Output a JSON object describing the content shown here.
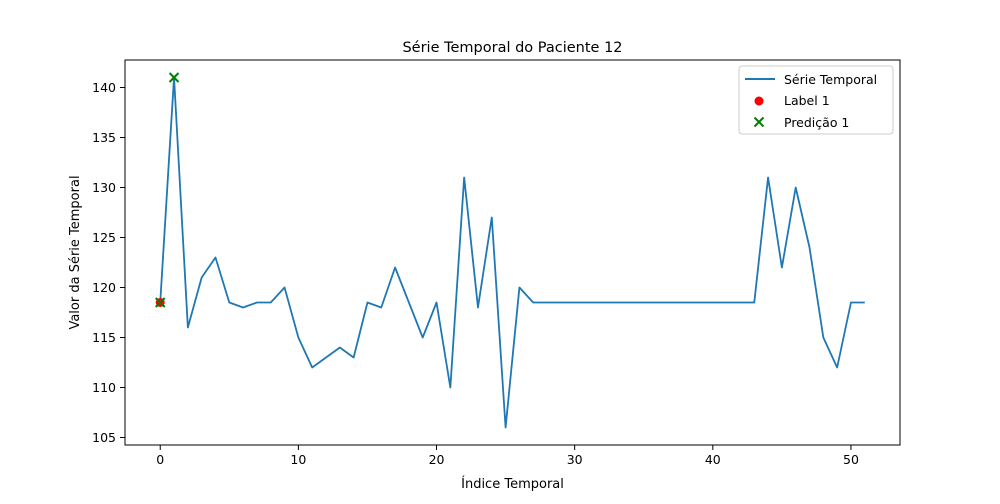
{
  "chart_data": {
    "type": "line",
    "title": "Série Temporal do Paciente 12",
    "xlabel": "Índice Temporal",
    "ylabel": "Valor da Série Temporal",
    "xlim": [
      -2.55,
      53.55
    ],
    "ylim": [
      104.25,
      142.75
    ],
    "xticks": [
      0,
      10,
      20,
      30,
      40,
      50
    ],
    "yticks": [
      105,
      110,
      115,
      120,
      125,
      130,
      135,
      140
    ],
    "grid": false,
    "legend_position": "top-right",
    "colors": {
      "line": "#1f77b4",
      "label": "#ff0000",
      "prediction": "#008000"
    },
    "series": [
      {
        "name": "Série Temporal",
        "kind": "line",
        "x": [
          0,
          1,
          2,
          3,
          4,
          5,
          6,
          7,
          8,
          9,
          10,
          11,
          12,
          13,
          14,
          15,
          16,
          17,
          18,
          19,
          20,
          21,
          22,
          23,
          24,
          25,
          26,
          27,
          28,
          29,
          30,
          31,
          32,
          33,
          34,
          35,
          36,
          37,
          38,
          39,
          40,
          41,
          42,
          43,
          44,
          45,
          46,
          47,
          48,
          49,
          50,
          51
        ],
        "values": [
          118.5,
          141,
          116,
          121,
          123,
          118.5,
          118,
          118.5,
          118.5,
          120,
          115,
          112,
          113,
          114,
          113,
          118.5,
          118,
          122,
          118.5,
          115,
          118.5,
          110,
          131,
          118,
          127,
          106,
          120,
          118.5,
          118.5,
          118.5,
          118.5,
          118.5,
          118.5,
          118.5,
          118.5,
          118.5,
          118.5,
          118.5,
          118.5,
          118.5,
          118.5,
          118.5,
          118.5,
          118.5,
          131,
          122,
          130,
          124,
          115,
          112,
          118.5,
          118.5
        ]
      },
      {
        "name": "Label 1",
        "kind": "scatter-dot",
        "x": [
          0
        ],
        "values": [
          118.5
        ]
      },
      {
        "name": "Predição 1",
        "kind": "scatter-x",
        "x": [
          1
        ],
        "values": [
          141
        ]
      }
    ],
    "extra_markers": [
      {
        "kind": "scatter-x",
        "x": 0,
        "y": 118.5
      }
    ]
  }
}
